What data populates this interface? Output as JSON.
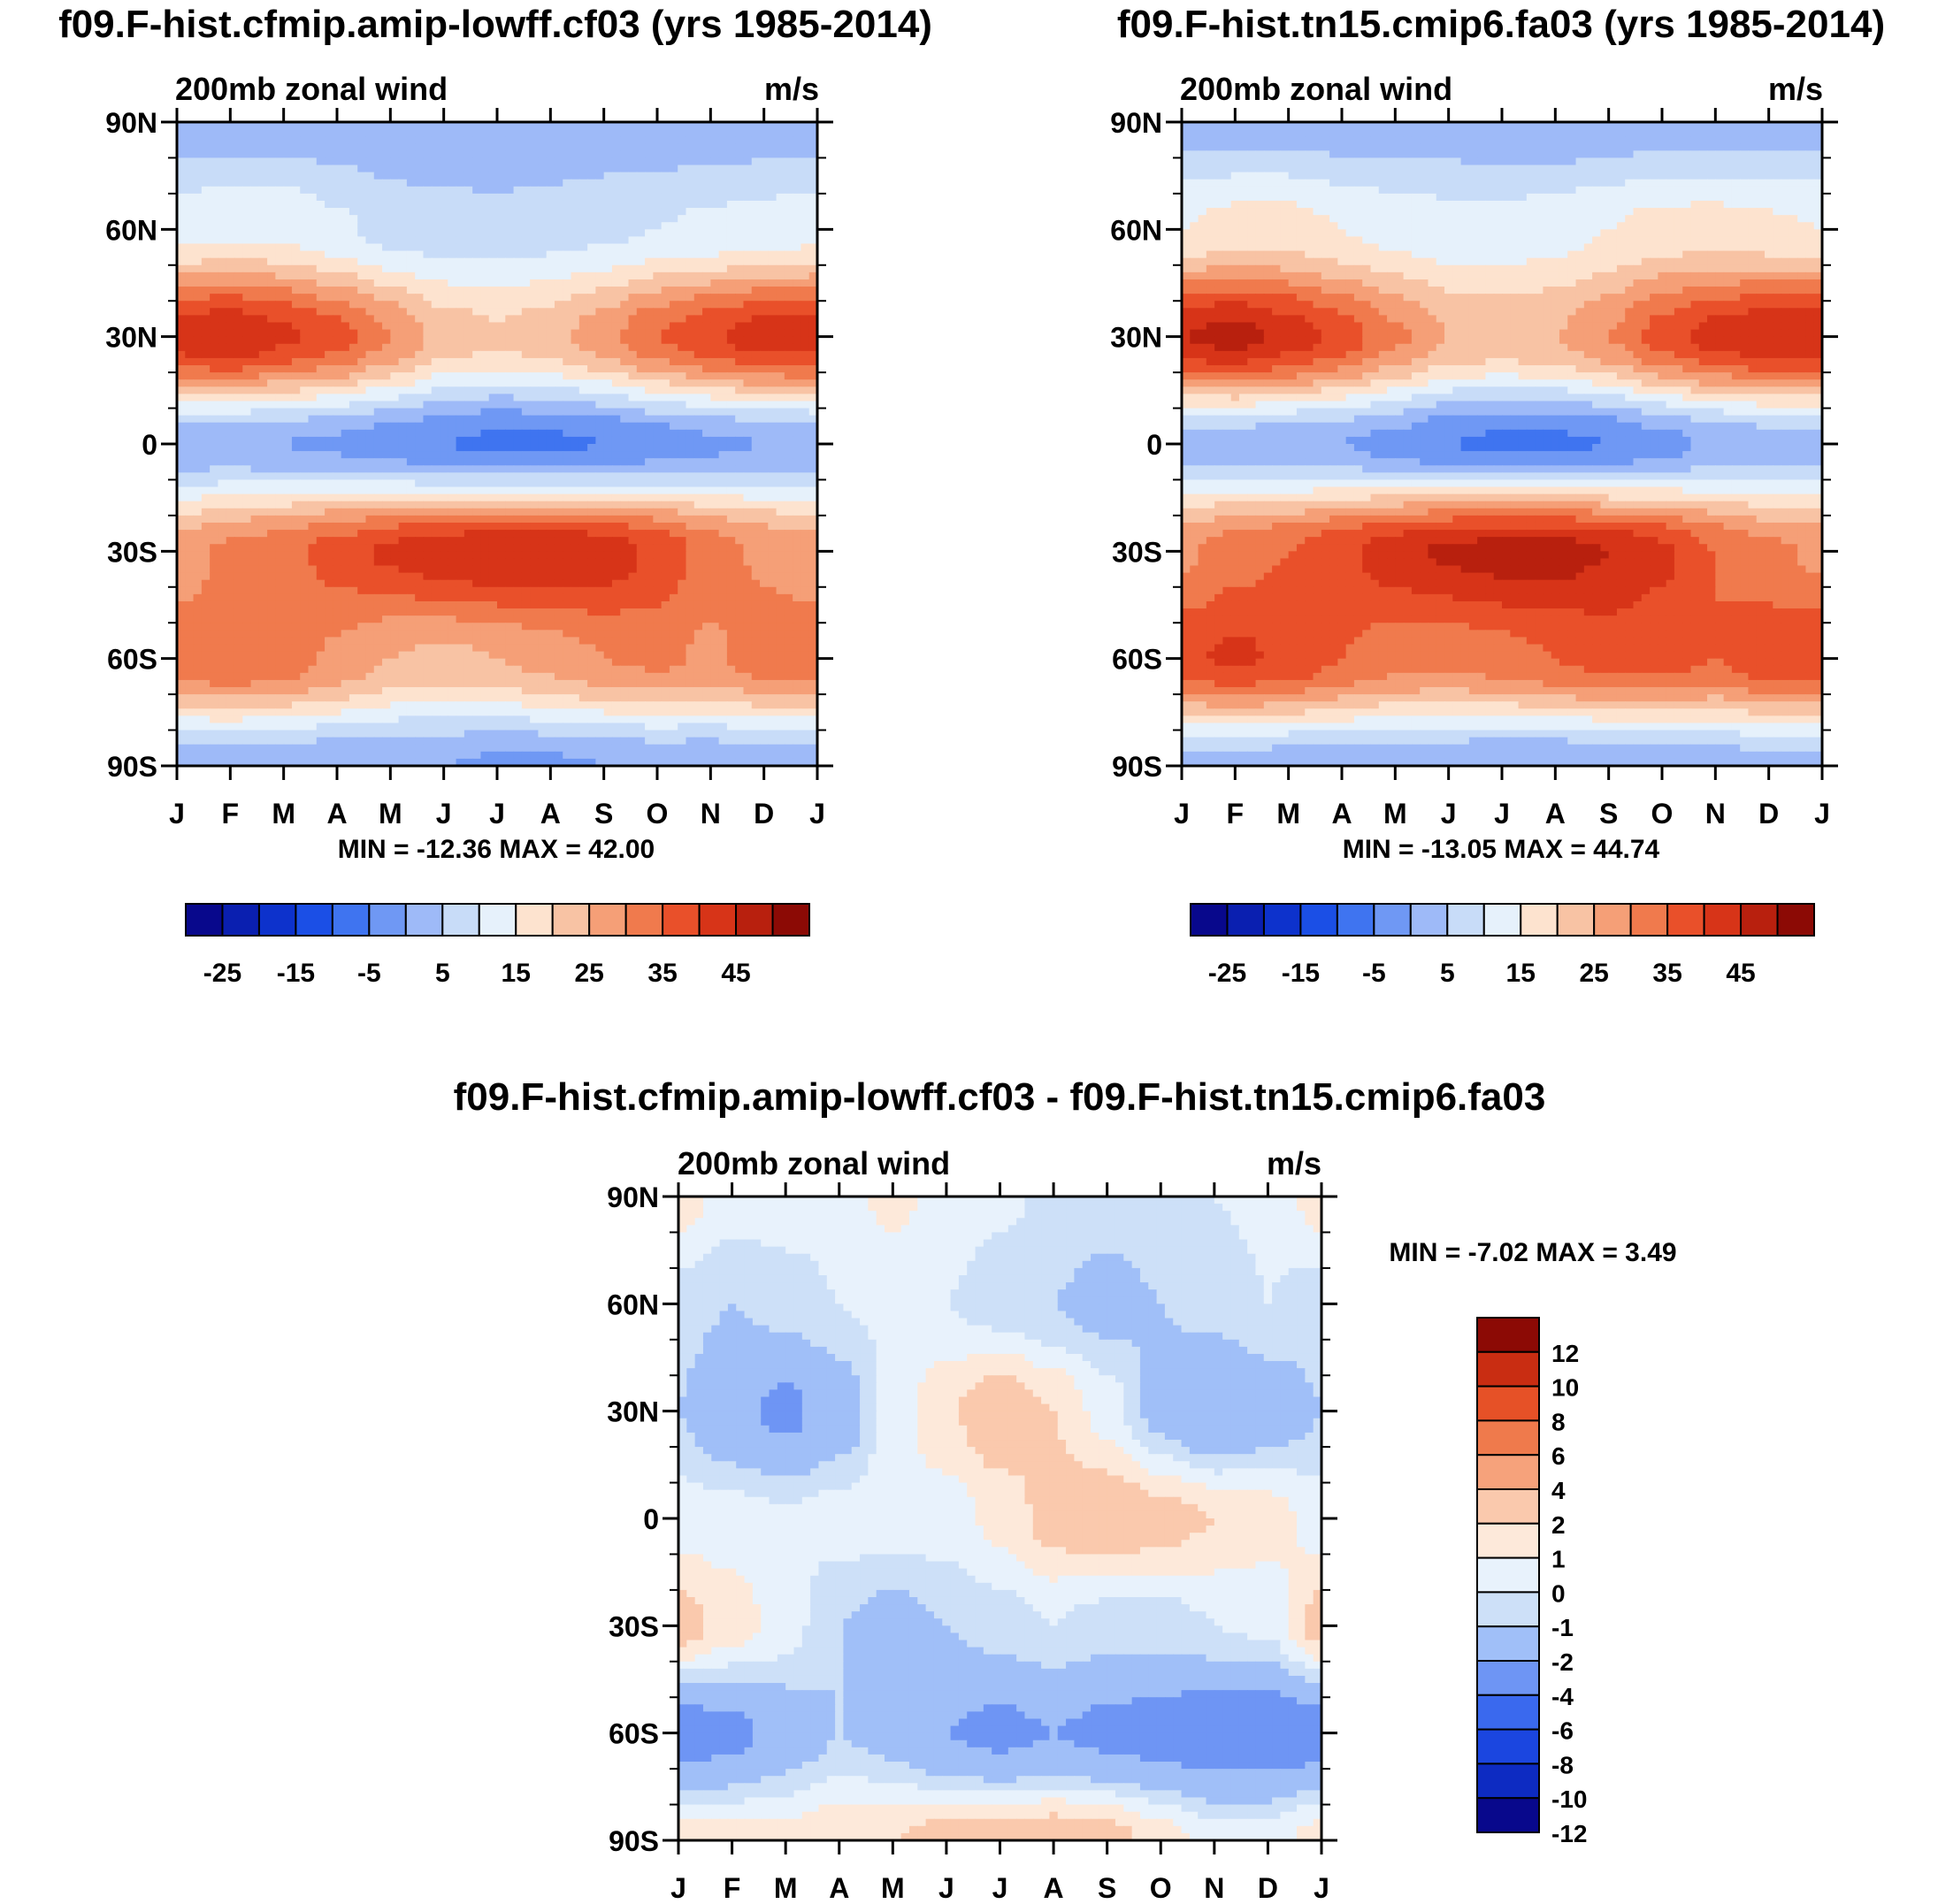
{
  "months": [
    "J",
    "F",
    "M",
    "A",
    "M",
    "J",
    "J",
    "A",
    "S",
    "O",
    "N",
    "D",
    "J"
  ],
  "lat_labels": [
    "90N",
    "60N",
    "30N",
    "0",
    "30S",
    "60S",
    "90S"
  ],
  "colors": {
    "abs": [
      "#08088c",
      "#0a1fb0",
      "#0d32cc",
      "#1b4fe6",
      "#3f74f0",
      "#6f98f4",
      "#9ebaf8",
      "#c8dcf8",
      "#e6f1fb",
      "#fde3cf",
      "#f8c3a4",
      "#f59f77",
      "#f07a4d",
      "#e9502a",
      "#d73418",
      "#b8200e",
      "#8c0a05"
    ],
    "diff": [
      "#08088c",
      "#0d2bc2",
      "#1b46e0",
      "#3a69ee",
      "#6e95f4",
      "#a0bff8",
      "#cde0f8",
      "#e8f2fc",
      "#fde9da",
      "#fac9ad",
      "#f6a27b",
      "#ef7a4c",
      "#e65127",
      "#c92d12",
      "#8c0a05"
    ]
  },
  "panels": [
    {
      "id": "cf03",
      "title": "f09.F-hist.cfmip.amip-lowff.cf03 (yrs 1985-2014)",
      "left_label": "200mb zonal wind",
      "right_label": "m/s",
      "stats": "MIN = -12.36 MAX =  42.00"
    },
    {
      "id": "fa03",
      "title": "f09.F-hist.tn15.cmip6.fa03 (yrs 1985-2014)",
      "left_label": "200mb zonal wind",
      "right_label": "m/s",
      "stats": "MIN = -13.05 MAX =  44.74"
    },
    {
      "id": "diff",
      "title": "f09.F-hist.cfmip.amip-lowff.cf03 - f09.F-hist.tn15.cmip6.fa03",
      "left_label": "200mb zonal wind",
      "right_label": "m/s",
      "stats": "MIN =  -7.02 MAX =   3.49"
    }
  ],
  "abs_colorbar": {
    "tick_labels": [
      "-25",
      "-15",
      "-5",
      "5",
      "15",
      "25",
      "35",
      "45"
    ]
  },
  "diff_colorbar": {
    "tick_labels": [
      "12",
      "10",
      "8",
      "6",
      "4",
      "2",
      "1",
      "0",
      "-1",
      "-2",
      "-4",
      "-6",
      "-8",
      "-10",
      "-12"
    ]
  },
  "chart_data": [
    {
      "type": "heatmap",
      "title": "f09.F-hist.cfmip.amip-lowff.cf03 (yrs 1985-2014)",
      "variable": "200mb zonal wind",
      "units": "m/s",
      "x": [
        "J",
        "F",
        "M",
        "A",
        "M",
        "J",
        "J",
        "A",
        "S",
        "O",
        "N",
        "D",
        "J"
      ],
      "y": [
        "90N",
        "60N",
        "30N",
        "0",
        "30S",
        "60S",
        "90S"
      ],
      "y_values": [
        90,
        60,
        30,
        0,
        -30,
        -60,
        -90
      ],
      "levels": [
        -30,
        -25,
        -20,
        -15,
        -10,
        -5,
        0,
        5,
        10,
        15,
        20,
        25,
        30,
        35,
        40,
        45
      ],
      "values": [
        [
          -3,
          -3,
          -3,
          -3,
          -4,
          -4,
          -5,
          -5,
          -4,
          -4,
          -3,
          -3,
          -3
        ],
        [
          8,
          9,
          9,
          6,
          3,
          2,
          2,
          3,
          4,
          5,
          6,
          7,
          8
        ],
        [
          38,
          40,
          36,
          32,
          25,
          18,
          16,
          18,
          23,
          30,
          34,
          38,
          38
        ],
        [
          -4,
          -4,
          -5,
          -6,
          -8,
          -10,
          -11,
          -11,
          -10,
          -8,
          -6,
          -5,
          -4
        ],
        [
          22,
          26,
          28,
          32,
          36,
          38,
          40,
          40,
          38,
          34,
          28,
          24,
          22
        ],
        [
          28,
          30,
          28,
          24,
          20,
          19,
          20,
          22,
          25,
          26,
          24,
          28,
          28
        ],
        [
          -3,
          -3,
          -4,
          -4,
          -5,
          -5,
          -6,
          -6,
          -5,
          -4,
          -4,
          -3,
          -3
        ]
      ],
      "min": -12.36,
      "max": 42.0
    },
    {
      "type": "heatmap",
      "title": "f09.F-hist.tn15.cmip6.fa03 (yrs 1985-2014)",
      "variable": "200mb zonal wind",
      "units": "m/s",
      "x": [
        "J",
        "F",
        "M",
        "A",
        "M",
        "J",
        "J",
        "A",
        "S",
        "O",
        "N",
        "D",
        "J"
      ],
      "y": [
        "90N",
        "60N",
        "30N",
        "0",
        "30S",
        "60S",
        "90S"
      ],
      "y_values": [
        90,
        60,
        30,
        0,
        -30,
        -60,
        -90
      ],
      "levels": [
        -30,
        -25,
        -20,
        -15,
        -10,
        -5,
        0,
        5,
        10,
        15,
        20,
        25,
        30,
        35,
        40,
        45
      ],
      "values": [
        [
          -2,
          -2,
          -2,
          -3,
          -3,
          -3,
          -4,
          -4,
          -3,
          -3,
          -2,
          -2,
          -2
        ],
        [
          10,
          12,
          12,
          10,
          8,
          7,
          7,
          8,
          10,
          12,
          12,
          11,
          10
        ],
        [
          40,
          42,
          38,
          33,
          26,
          20,
          19,
          20,
          25,
          32,
          37,
          40,
          40
        ],
        [
          -3,
          -3,
          -4,
          -5,
          -7,
          -10,
          -11,
          -11,
          -10,
          -7,
          -4,
          -3,
          -3
        ],
        [
          24,
          28,
          30,
          34,
          38,
          41,
          42,
          42,
          40,
          36,
          30,
          26,
          24
        ],
        [
          34,
          36,
          34,
          30,
          27,
          26,
          28,
          30,
          32,
          32,
          30,
          34,
          34
        ],
        [
          -2,
          -2,
          -3,
          -3,
          -4,
          -4,
          -5,
          -5,
          -4,
          -3,
          -3,
          -2,
          -2
        ]
      ],
      "min": -13.05,
      "max": 44.74
    },
    {
      "type": "heatmap",
      "title": "f09.F-hist.cfmip.amip-lowff.cf03 - f09.F-hist.tn15.cmip6.fa03",
      "variable": "200mb zonal wind",
      "units": "m/s",
      "x": [
        "J",
        "F",
        "M",
        "A",
        "M",
        "J",
        "J",
        "A",
        "S",
        "O",
        "N",
        "D",
        "J"
      ],
      "y": [
        "90N",
        "60N",
        "30N",
        "0",
        "30S",
        "60S",
        "90S"
      ],
      "y_values": [
        90,
        60,
        30,
        0,
        -30,
        -60,
        -90
      ],
      "levels": [
        -12,
        -10,
        -8,
        -6,
        -4,
        -2,
        -1,
        0,
        1,
        2,
        4,
        6,
        8,
        10,
        12
      ],
      "values": [
        [
          0.5,
          -0.5,
          -0.5,
          -0.5,
          0.3,
          -0.5,
          -0.8,
          -1.2,
          -1.5,
          -1.2,
          -1,
          -0.8,
          0.5
        ],
        [
          -1.5,
          -2,
          -1.5,
          -1,
          -0.8,
          -1,
          -1.5,
          -2,
          -2.5,
          -2,
          -1.5,
          -1,
          -1.5
        ],
        [
          -2,
          -3.5,
          -4.5,
          -3,
          -0.5,
          0.8,
          2,
          1,
          -0.5,
          -2.5,
          -4,
          -3,
          -2
        ],
        [
          -0.5,
          -0.5,
          -0.8,
          -0.5,
          -0.5,
          -0.5,
          0.3,
          1.5,
          2,
          1.5,
          1,
          0.5,
          -0.5
        ],
        [
          1.5,
          0.5,
          -0.5,
          -2,
          -2.5,
          -2,
          -1.5,
          -1,
          -1.5,
          -1.5,
          -1,
          -0.8,
          1.5
        ],
        [
          -5,
          -4.5,
          -3,
          -2,
          -2.5,
          -4,
          -4.5,
          -4,
          -4.5,
          -5,
          -5.5,
          -5.5,
          -5
        ],
        [
          0.5,
          0.5,
          0.3,
          0.8,
          1,
          1.5,
          1.5,
          1.8,
          1.5,
          0.5,
          -0.5,
          -0.5,
          0.5
        ]
      ],
      "min": -7.02,
      "max": 3.49
    }
  ]
}
